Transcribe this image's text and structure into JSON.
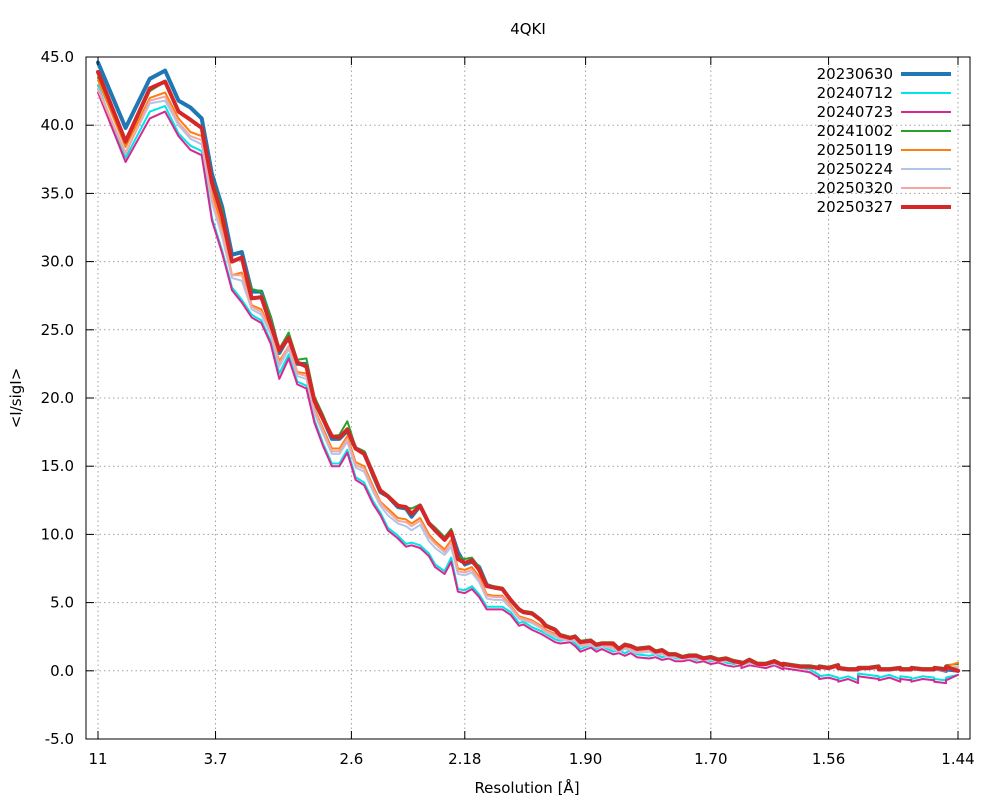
{
  "chart_data": {
    "type": "line",
    "title": "4QKI",
    "xlabel": "Resolution [Å]",
    "ylabel": "<I/sigI>",
    "xlim": [
      11,
      1.44
    ],
    "ylim": [
      -5.0,
      45.0
    ],
    "grid": true,
    "legend_position": "top-right",
    "x_ticks": [
      "11",
      "3.7",
      "2.6",
      "2.18",
      "1.90",
      "1.70",
      "1.56",
      "1.44"
    ],
    "y_ticks": [
      "45.0",
      "40.0",
      "35.0",
      "30.0",
      "25.0",
      "20.0",
      "15.0",
      "10.0",
      "5.0",
      "0.0",
      "-5.0"
    ],
    "x_tick_values": [
      11,
      3.7,
      2.6,
      2.18,
      1.9,
      1.7,
      1.56,
      1.44
    ],
    "y_tick_values": [
      45,
      40,
      35,
      30,
      25,
      20,
      15,
      10,
      5,
      0,
      -5
    ],
    "x": [
      11.0,
      6.53,
      5.21,
      4.7,
      4.36,
      4.11,
      3.91,
      3.75,
      3.61,
      3.49,
      3.38,
      3.28,
      3.19,
      3.11,
      3.04,
      2.97,
      2.91,
      2.85,
      2.8,
      2.75,
      2.7,
      2.66,
      2.62,
      2.58,
      2.54,
      2.5,
      2.47,
      2.44,
      2.4,
      2.37,
      2.35,
      2.32,
      2.29,
      2.27,
      2.24,
      2.22,
      2.2,
      2.18,
      2.16,
      2.14,
      2.12,
      2.1,
      2.08,
      2.06,
      2.04,
      2.03,
      2.01,
      1.99,
      1.98,
      1.96,
      1.95,
      1.93,
      1.92,
      1.91,
      1.89,
      1.88,
      1.87,
      1.85,
      1.84,
      1.83,
      1.82,
      1.81,
      1.79,
      1.78,
      1.77,
      1.76,
      1.75,
      1.74,
      1.73,
      1.72,
      1.71,
      1.7,
      1.69,
      1.68,
      1.67,
      1.66,
      1.66,
      1.65,
      1.64,
      1.63,
      1.62,
      1.61,
      1.61,
      1.6,
      1.59,
      1.58,
      1.57,
      1.57,
      1.56,
      1.55,
      1.55,
      1.54,
      1.53,
      1.53,
      1.52,
      1.51,
      1.51,
      1.5,
      1.49,
      1.49,
      1.48,
      1.48,
      1.47,
      1.46,
      1.46,
      1.45,
      1.45,
      1.44
    ],
    "series": [
      {
        "name": "20230630",
        "color": "#1f77b4",
        "width": 4,
        "values": [
          44.6,
          39.8,
          43.4,
          44.0,
          41.8,
          41.3,
          40.5,
          36.4,
          34.0,
          30.5,
          30.7,
          27.8,
          27.8,
          25.8,
          23.3,
          24.5,
          22.5,
          22.5,
          19.7,
          18.5,
          17.0,
          17.0,
          17.6,
          16.3,
          16.0,
          14.3,
          13.1,
          12.8,
          12.0,
          11.9,
          11.3,
          12.1,
          10.8,
          10.4,
          9.7,
          10.2,
          8.7,
          7.8,
          8.0,
          7.6,
          6.3,
          6.1,
          6.0,
          5.2,
          4.5,
          4.3,
          4.2,
          3.7,
          3.3,
          3.0,
          2.6,
          2.4,
          2.5,
          2.1,
          2.2,
          1.9,
          2.0,
          2.0,
          1.6,
          1.9,
          1.8,
          1.6,
          1.7,
          1.4,
          1.5,
          1.2,
          1.2,
          1.0,
          1.1,
          1.1,
          0.9,
          1.0,
          0.8,
          0.9,
          0.7,
          0.6,
          0.5,
          0.8,
          0.5,
          0.5,
          0.7,
          0.4,
          0.5,
          0.4,
          0.3,
          0.3,
          0.2,
          0.3,
          0.2,
          0.4,
          0.2,
          0.1,
          0.1,
          0.2,
          0.2,
          0.3,
          0.1,
          0.1,
          0.2,
          0.1,
          0.1,
          0.2,
          0.1,
          0.1,
          0.2,
          0.0,
          0.1,
          0.0
        ]
      },
      {
        "name": "20240712",
        "color": "#00e5e5",
        "width": 2,
        "values": [
          42.9,
          37.6,
          41.0,
          41.4,
          39.4,
          38.5,
          38.1,
          33.2,
          30.8,
          28.1,
          27.2,
          26.1,
          25.7,
          24.2,
          21.8,
          23.2,
          21.2,
          20.9,
          18.4,
          16.7,
          15.2,
          15.2,
          16.2,
          14.2,
          13.8,
          12.4,
          11.6,
          10.5,
          9.9,
          9.3,
          9.4,
          9.2,
          8.6,
          7.8,
          7.3,
          8.3,
          6.0,
          5.9,
          6.2,
          5.6,
          4.7,
          4.7,
          4.7,
          4.3,
          3.5,
          3.6,
          3.2,
          2.9,
          2.7,
          2.3,
          2.2,
          2.3,
          2.0,
          1.6,
          1.9,
          1.6,
          1.8,
          1.4,
          1.5,
          1.3,
          1.5,
          1.2,
          1.1,
          1.2,
          1.0,
          1.1,
          0.9,
          0.9,
          1.0,
          0.8,
          0.9,
          0.7,
          0.8,
          0.6,
          0.5,
          0.6,
          0.4,
          0.6,
          0.5,
          0.4,
          0.6,
          0.3,
          0.4,
          0.3,
          0.2,
          0.1,
          -0.3,
          -0.4,
          -0.3,
          -0.5,
          -0.6,
          -0.4,
          -0.7,
          -0.2,
          -0.3,
          -0.4,
          -0.5,
          -0.3,
          -0.6,
          -0.4,
          -0.5,
          -0.6,
          -0.4,
          -0.5,
          -0.6,
          -0.7,
          -0.5,
          -0.3
        ]
      },
      {
        "name": "20240723",
        "color": "#d62891",
        "width": 2,
        "values": [
          42.4,
          37.3,
          40.5,
          41.0,
          39.2,
          38.2,
          37.8,
          33.0,
          30.6,
          27.9,
          27.0,
          25.9,
          25.5,
          24.0,
          21.4,
          22.9,
          21.0,
          20.7,
          18.2,
          16.5,
          15.0,
          15.0,
          16.0,
          14.0,
          13.6,
          12.2,
          11.4,
          10.3,
          9.7,
          9.1,
          9.2,
          9.0,
          8.4,
          7.6,
          7.1,
          8.0,
          5.8,
          5.7,
          6.0,
          5.4,
          4.5,
          4.5,
          4.5,
          4.1,
          3.3,
          3.4,
          3.0,
          2.7,
          2.5,
          2.1,
          2.0,
          2.1,
          1.8,
          1.4,
          1.7,
          1.4,
          1.6,
          1.2,
          1.3,
          1.1,
          1.3,
          1.0,
          0.9,
          1.0,
          0.8,
          0.9,
          0.7,
          0.7,
          0.8,
          0.6,
          0.7,
          0.5,
          0.6,
          0.4,
          0.3,
          0.4,
          0.2,
          0.4,
          0.3,
          0.2,
          0.4,
          0.1,
          0.2,
          0.1,
          0.0,
          -0.1,
          -0.5,
          -0.6,
          -0.5,
          -0.7,
          -0.8,
          -0.6,
          -0.9,
          -0.4,
          -0.5,
          -0.6,
          -0.7,
          -0.5,
          -0.8,
          -0.6,
          -0.7,
          -0.8,
          -0.6,
          -0.7,
          -0.8,
          -0.9,
          -0.7,
          -0.3
        ]
      },
      {
        "name": "20241002",
        "color": "#2ca02c",
        "width": 2,
        "values": [
          43.5,
          38.6,
          42.5,
          43.2,
          41.0,
          40.4,
          39.9,
          36.1,
          33.8,
          30.0,
          30.3,
          28.0,
          27.8,
          26.0,
          23.6,
          24.8,
          22.8,
          22.9,
          20.1,
          18.8,
          17.2,
          17.3,
          18.3,
          16.4,
          16.1,
          14.6,
          13.3,
          12.9,
          12.2,
          12.0,
          11.9,
          12.2,
          10.9,
          10.5,
          9.8,
          10.4,
          8.4,
          8.2,
          8.3,
          7.6,
          6.3,
          6.2,
          6.1,
          5.3,
          4.6,
          4.4,
          4.3,
          3.8,
          3.4,
          3.1,
          2.7,
          2.5,
          2.6,
          2.2,
          2.3,
          2.0,
          2.1,
          2.1,
          1.7,
          2.0,
          1.9,
          1.7,
          1.8,
          1.5,
          1.6,
          1.3,
          1.3,
          1.1,
          1.2,
          1.2,
          1.0,
          1.1,
          0.9,
          1.0,
          0.8,
          0.7,
          0.6,
          0.9,
          0.6,
          0.6,
          0.8,
          0.5,
          0.6,
          0.5,
          0.4,
          0.4,
          0.3,
          0.4,
          0.3,
          0.5,
          0.3,
          0.2,
          0.2,
          0.3,
          0.3,
          0.4,
          0.2,
          0.2,
          0.3,
          0.2,
          0.2,
          0.3,
          0.2,
          0.2,
          0.3,
          0.2,
          0.4,
          0.5
        ]
      },
      {
        "name": "20250119",
        "color": "#ff7f0e",
        "width": 2,
        "values": [
          43.3,
          38.4,
          42.0,
          42.4,
          40.5,
          39.5,
          39.2,
          35.0,
          32.5,
          29.0,
          29.2,
          26.8,
          26.5,
          25.0,
          22.7,
          23.8,
          21.9,
          21.8,
          19.2,
          17.8,
          16.3,
          16.3,
          17.2,
          15.3,
          15.0,
          13.5,
          12.4,
          11.9,
          11.2,
          11.1,
          10.8,
          11.2,
          10.0,
          9.5,
          8.9,
          9.6,
          7.5,
          7.4,
          7.6,
          6.9,
          5.6,
          5.5,
          5.5,
          4.8,
          4.0,
          3.9,
          3.7,
          3.3,
          3.0,
          2.7,
          2.4,
          2.3,
          2.3,
          1.9,
          2.0,
          1.8,
          1.9,
          1.8,
          1.5,
          1.7,
          1.6,
          1.4,
          1.5,
          1.3,
          1.3,
          1.1,
          1.1,
          1.0,
          1.0,
          1.0,
          0.9,
          0.9,
          0.8,
          0.8,
          0.7,
          0.6,
          0.5,
          0.7,
          0.5,
          0.5,
          0.6,
          0.4,
          0.5,
          0.4,
          0.3,
          0.3,
          0.2,
          0.3,
          0.2,
          0.4,
          0.2,
          0.1,
          0.1,
          0.2,
          0.2,
          0.3,
          0.1,
          0.1,
          0.2,
          0.1,
          0.1,
          0.2,
          0.1,
          0.1,
          0.2,
          0.1,
          0.3,
          0.6
        ]
      },
      {
        "name": "20250224",
        "color": "#aec7e8",
        "width": 2,
        "values": [
          42.7,
          38.0,
          41.6,
          41.8,
          40.0,
          39.0,
          38.6,
          34.3,
          31.8,
          28.8,
          28.6,
          26.5,
          26.1,
          24.7,
          22.3,
          23.6,
          21.6,
          21.4,
          18.9,
          17.4,
          15.9,
          15.9,
          16.8,
          14.9,
          14.6,
          13.1,
          12.1,
          11.4,
          10.8,
          10.6,
          10.3,
          10.7,
          9.5,
          9.0,
          8.5,
          9.1,
          7.1,
          7.0,
          7.2,
          6.5,
          5.3,
          5.2,
          5.2,
          4.6,
          3.8,
          3.7,
          3.5,
          3.1,
          2.8,
          2.5,
          2.3,
          2.2,
          2.2,
          1.8,
          1.9,
          1.7,
          1.8,
          1.6,
          1.4,
          1.6,
          1.5,
          1.3,
          1.4,
          1.2,
          1.2,
          1.0,
          1.0,
          0.9,
          0.9,
          0.9,
          0.8,
          0.8,
          0.7,
          0.7,
          0.6,
          0.5,
          0.4,
          0.6,
          0.4,
          0.4,
          0.5,
          0.3,
          0.4,
          0.3,
          0.2,
          0.2,
          0.1,
          0.2,
          0.1,
          0.3,
          0.1,
          0.0,
          0.0,
          0.1,
          0.1,
          0.2,
          0.0,
          0.0,
          0.1,
          0.0,
          0.0,
          0.1,
          0.0,
          0.0,
          0.1,
          0.0,
          0.1,
          0.2
        ]
      },
      {
        "name": "20250320",
        "color": "#f4a6a6",
        "width": 2,
        "values": [
          42.6,
          37.9,
          41.8,
          42.1,
          40.2,
          39.2,
          38.9,
          34.6,
          32.1,
          29.0,
          29.0,
          26.7,
          26.3,
          24.9,
          22.5,
          23.8,
          21.8,
          21.6,
          19.1,
          17.6,
          16.1,
          16.1,
          17.0,
          15.1,
          14.8,
          13.3,
          12.3,
          11.7,
          11.0,
          10.9,
          10.6,
          11.0,
          9.8,
          9.3,
          8.7,
          9.4,
          7.3,
          7.2,
          7.4,
          6.7,
          5.5,
          5.4,
          5.4,
          4.7,
          3.9,
          3.8,
          3.6,
          3.2,
          2.9,
          2.6,
          2.4,
          2.3,
          2.3,
          1.9,
          2.0,
          1.8,
          1.9,
          1.7,
          1.5,
          1.7,
          1.6,
          1.4,
          1.5,
          1.3,
          1.3,
          1.1,
          1.1,
          1.0,
          1.0,
          1.0,
          0.9,
          0.9,
          0.8,
          0.8,
          0.7,
          0.6,
          0.5,
          0.7,
          0.5,
          0.5,
          0.6,
          0.4,
          0.5,
          0.4,
          0.3,
          0.3,
          0.2,
          0.3,
          0.2,
          0.4,
          0.2,
          0.1,
          0.1,
          0.2,
          0.2,
          0.3,
          0.1,
          0.1,
          0.2,
          0.1,
          0.1,
          0.2,
          0.1,
          0.1,
          0.2,
          0.1,
          0.2,
          0.3
        ]
      },
      {
        "name": "20250327",
        "color": "#d62728",
        "width": 4,
        "values": [
          43.9,
          38.8,
          42.7,
          43.2,
          41.0,
          40.4,
          39.8,
          35.8,
          33.3,
          30.0,
          30.3,
          27.3,
          27.4,
          25.4,
          23.5,
          24.4,
          22.6,
          22.3,
          19.8,
          18.5,
          17.2,
          17.1,
          17.7,
          16.3,
          15.9,
          14.4,
          13.2,
          12.8,
          12.1,
          12.0,
          11.5,
          12.1,
          10.8,
          10.3,
          9.6,
          10.2,
          8.2,
          7.9,
          8.1,
          7.4,
          6.2,
          6.1,
          6.0,
          5.2,
          4.5,
          4.3,
          4.2,
          3.7,
          3.3,
          3.0,
          2.6,
          2.4,
          2.5,
          2.1,
          2.2,
          1.9,
          2.0,
          2.0,
          1.6,
          1.9,
          1.8,
          1.6,
          1.7,
          1.4,
          1.5,
          1.2,
          1.2,
          1.0,
          1.1,
          1.1,
          0.9,
          1.0,
          0.8,
          0.9,
          0.7,
          0.6,
          0.5,
          0.8,
          0.5,
          0.5,
          0.7,
          0.4,
          0.5,
          0.4,
          0.3,
          0.3,
          0.2,
          0.3,
          0.2,
          0.4,
          0.2,
          0.1,
          0.1,
          0.2,
          0.2,
          0.3,
          0.1,
          0.1,
          0.2,
          0.1,
          0.1,
          0.2,
          0.1,
          0.1,
          0.2,
          0.1,
          0.3,
          0.0
        ]
      }
    ]
  }
}
